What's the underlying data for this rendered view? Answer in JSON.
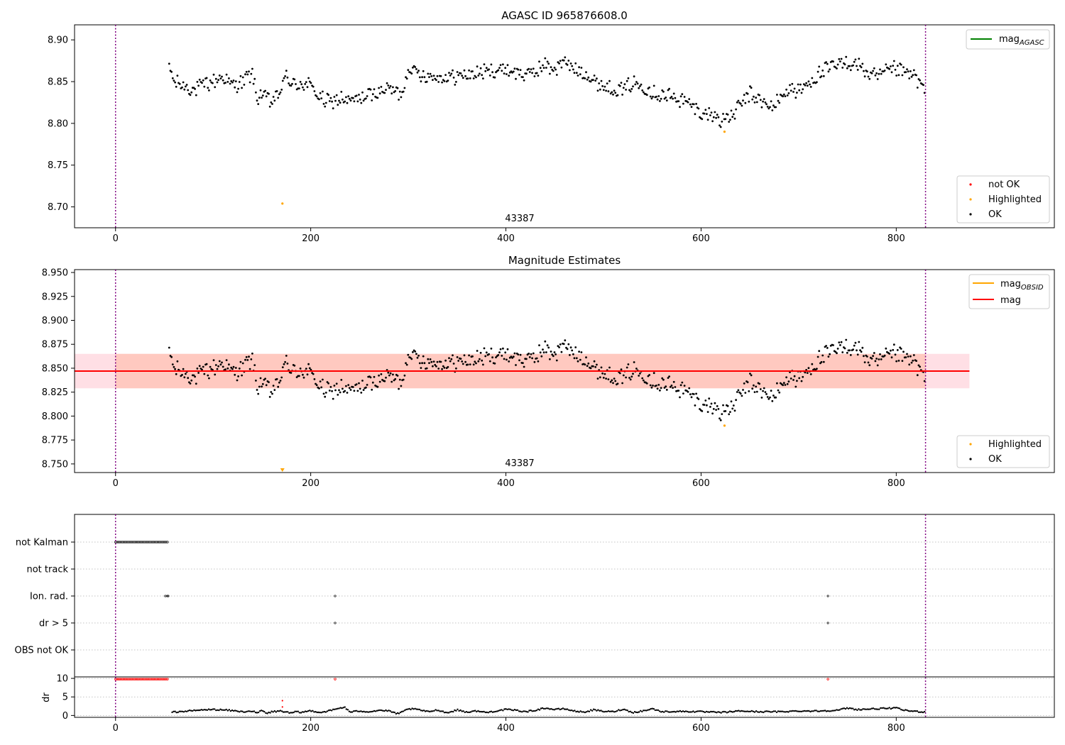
{
  "figure": {
    "obsid_label": "43387",
    "obs_start": 0,
    "obs_stop": 830
  },
  "chart_data": [
    {
      "type": "scatter",
      "title": "AGASC ID 965876608.0",
      "xlim": [
        -42,
        962
      ],
      "ylim": [
        8.675,
        8.918
      ],
      "xticks": [
        0,
        200,
        400,
        600,
        800
      ],
      "yticks": [
        8.7,
        8.75,
        8.8,
        8.85,
        8.9
      ],
      "ytick_labels": [
        "8.70",
        "8.75",
        "8.80",
        "8.85",
        "8.90"
      ],
      "grid": false,
      "legend_line": {
        "placement": "top-right",
        "entries": [
          {
            "label": "mag",
            "sub": "AGASC",
            "color": "#008000"
          }
        ]
      },
      "legend_points": {
        "placement": "bottom-right",
        "entries": [
          {
            "label": "not OK",
            "color": "#ff0000"
          },
          {
            "label": "Highlighted",
            "color": "#ffa500"
          },
          {
            "label": "OK",
            "color": "#000000"
          }
        ]
      },
      "series": [
        {
          "name": "OK",
          "color": "#000000",
          "envelope": {
            "x": [
              55,
              60,
              70,
              80,
              90,
              100,
              110,
              120,
              130,
              140,
              145,
              150,
              160,
              170,
              175,
              180,
              190,
              200,
              210,
              220,
              230,
              240,
              250,
              260,
              270,
              280,
              290,
              295,
              300,
              310,
              320,
              340,
              360,
              380,
              400,
              420,
              430,
              440,
              450,
              460,
              470,
              480,
              490,
              500,
              510,
              520,
              530,
              540,
              550,
              560,
              570,
              580,
              590,
              600,
              610,
              620,
              630,
              640,
              650,
              660,
              670,
              680,
              690,
              700,
              710,
              720,
              730,
              740,
              750,
              760,
              770,
              780,
              790,
              800,
              810,
              820,
              830
            ],
            "y": [
              8.866,
              8.85,
              8.845,
              8.84,
              8.846,
              8.85,
              8.856,
              8.845,
              8.85,
              8.86,
              8.83,
              8.835,
              8.825,
              8.84,
              8.86,
              8.845,
              8.848,
              8.845,
              8.83,
              8.825,
              8.83,
              8.826,
              8.83,
              8.833,
              8.838,
              8.843,
              8.835,
              8.84,
              8.868,
              8.86,
              8.857,
              8.855,
              8.858,
              8.862,
              8.865,
              8.858,
              8.862,
              8.87,
              8.865,
              8.874,
              8.865,
              8.862,
              8.85,
              8.845,
              8.842,
              8.84,
              8.848,
              8.845,
              8.838,
              8.833,
              8.832,
              8.828,
              8.822,
              8.812,
              8.811,
              8.805,
              8.806,
              8.822,
              8.835,
              8.828,
              8.818,
              8.828,
              8.842,
              8.838,
              8.848,
              8.858,
              8.865,
              8.87,
              8.872,
              8.872,
              8.86,
              8.855,
              8.862,
              8.865,
              8.86,
              8.856,
              8.836
            ],
            "scatter": 0.008,
            "step": 1.2
          }
        },
        {
          "name": "Highlighted",
          "color": "#ffa500",
          "x": [
            171,
            624
          ],
          "y": [
            8.704,
            8.79
          ]
        }
      ]
    },
    {
      "type": "scatter",
      "title": "Magnitude Estimates",
      "xlim": [
        -42,
        962
      ],
      "ylim": [
        8.741,
        8.953
      ],
      "xticks": [
        0,
        200,
        400,
        600,
        800
      ],
      "yticks": [
        8.75,
        8.775,
        8.8,
        8.825,
        8.85,
        8.875,
        8.9,
        8.925,
        8.95
      ],
      "ytick_labels": [
        "8.750",
        "8.775",
        "8.800",
        "8.825",
        "8.850",
        "8.875",
        "8.900",
        "8.925",
        "8.950"
      ],
      "grid": false,
      "mag": 8.847,
      "mag_band": [
        8.829,
        8.865
      ],
      "obsid_band": {
        "x": [
          0,
          830
        ],
        "y": [
          8.829,
          8.865
        ]
      },
      "legend_line": {
        "placement": "top-right",
        "entries": [
          {
            "label": "mag",
            "sub": "OBSID",
            "color": "#ffa500"
          },
          {
            "label": "mag",
            "sub": "",
            "color": "#ff0000"
          }
        ]
      },
      "legend_points": {
        "placement": "bottom-right",
        "entries": [
          {
            "label": "Highlighted",
            "color": "#ffa500"
          },
          {
            "label": "OK",
            "color": "#000000"
          }
        ]
      },
      "highlighted": {
        "x": [
          624
        ],
        "y": [
          8.79
        ]
      },
      "offscale_marker": {
        "x": 171,
        "color": "#ffa500"
      }
    },
    {
      "type": "scatter",
      "title": "",
      "xlim": [
        -42,
        962
      ],
      "xticks": [
        0,
        200,
        400,
        600,
        800
      ],
      "flag_rows": [
        "not Kalman",
        "not track",
        "Ion. rad.",
        "dr > 5",
        "OBS not OK"
      ],
      "flags": [
        {
          "row": "not Kalman",
          "ranges": [
            [
              0,
              54
            ]
          ],
          "x": []
        },
        {
          "row": "not track",
          "ranges": [],
          "x": []
        },
        {
          "row": "Ion. rad.",
          "ranges": [],
          "x": [
            51,
            53,
            54,
            225,
            730
          ]
        },
        {
          "row": "dr > 5",
          "ranges": [],
          "x": [
            225,
            730
          ]
        },
        {
          "row": "OBS not OK",
          "ranges": [],
          "x": []
        }
      ],
      "dr": {
        "ylabel": "dr",
        "ylim": [
          -0.5,
          10.4
        ],
        "yticks": [
          0,
          5,
          10
        ],
        "clip_value": 9.8,
        "clipped_x_ranges": [
          [
            0,
            54
          ]
        ],
        "clipped_x": [
          225,
          730
        ],
        "outliers": [
          {
            "x": 171,
            "y": 4.0
          },
          {
            "x": 171,
            "y": 2.3
          }
        ],
        "envelope": {
          "x": [
            58,
            70,
            80,
            90,
            100,
            110,
            120,
            130,
            140,
            145,
            150,
            155,
            160,
            170,
            180,
            185,
            190,
            200,
            210,
            220,
            230,
            235,
            240,
            250,
            260,
            270,
            280,
            290,
            300,
            310,
            320,
            330,
            340,
            350,
            360,
            370,
            380,
            400,
            410,
            420,
            430,
            440,
            450,
            460,
            470,
            480,
            490,
            500,
            510,
            520,
            530,
            540,
            550,
            560,
            580,
            600,
            620,
            640,
            660,
            680,
            700,
            720,
            730,
            740,
            750,
            760,
            780,
            800,
            810,
            820,
            830
          ],
          "y": [
            0.9,
            1.1,
            1.3,
            1.5,
            1.6,
            1.5,
            1.3,
            1.0,
            1.2,
            0.6,
            1.4,
            0.5,
            1.0,
            1.2,
            0.6,
            1.0,
            0.8,
            1.3,
            0.8,
            1.3,
            2.0,
            2.2,
            0.9,
            1.2,
            1.0,
            1.4,
            1.2,
            0.4,
            1.8,
            1.6,
            1.0,
            1.5,
            0.7,
            1.5,
            0.9,
            1.2,
            0.8,
            1.6,
            1.4,
            1.0,
            1.4,
            2.0,
            1.6,
            1.8,
            1.2,
            0.9,
            1.5,
            1.1,
            1.0,
            1.7,
            0.8,
            1.2,
            1.8,
            1.0,
            1.1,
            1.0,
            0.8,
            1.2,
            1.0,
            1.0,
            1.2,
            1.2,
            1.3,
            1.4,
            2.0,
            1.6,
            1.8,
            2.0,
            1.3,
            1.1,
            0.9
          ],
          "step": 1.5
        }
      }
    }
  ]
}
